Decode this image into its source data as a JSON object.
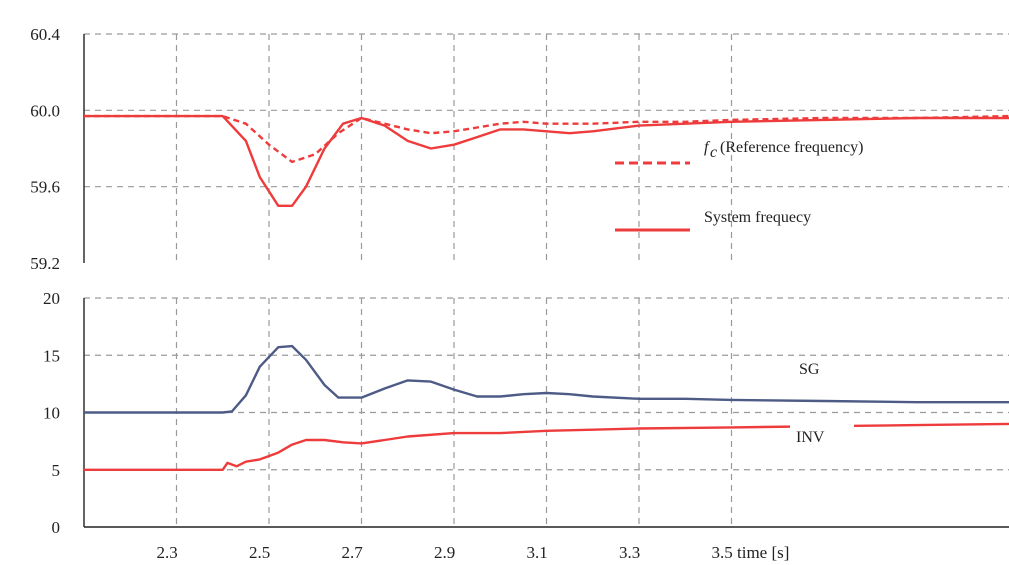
{
  "chart_data": [
    {
      "type": "line",
      "ylim": [
        59.2,
        60.4
      ],
      "yticks": [
        "60.4",
        "60.0",
        "59.6",
        "59.2"
      ],
      "xlim": [
        2.1,
        4.1
      ],
      "grid": true,
      "legend_position": "right",
      "legend": [
        {
          "symbol": "f",
          "subscript": "c",
          "text": "(Reference frequency)",
          "style": "dashed"
        },
        {
          "text": "System frequecy",
          "style": "solid"
        }
      ],
      "colors": {
        "reference": "#ee3b3b",
        "system": "#ee3b3b"
      },
      "series": [
        {
          "name": "fc (Reference frequency)",
          "style": "dashed",
          "x": [
            2.1,
            2.4,
            2.45,
            2.5,
            2.55,
            2.6,
            2.65,
            2.7,
            2.75,
            2.8,
            2.85,
            2.9,
            2.95,
            3.0,
            3.05,
            3.1,
            3.2,
            3.3,
            3.4,
            3.5,
            3.7,
            3.9,
            4.1
          ],
          "y": [
            59.97,
            59.97,
            59.93,
            59.82,
            59.73,
            59.77,
            59.88,
            59.96,
            59.93,
            59.9,
            59.88,
            59.89,
            59.91,
            59.93,
            59.94,
            59.93,
            59.93,
            59.94,
            59.94,
            59.95,
            59.96,
            59.96,
            59.97
          ]
        },
        {
          "name": "System frequecy",
          "style": "solid",
          "x": [
            2.1,
            2.4,
            2.45,
            2.48,
            2.52,
            2.55,
            2.58,
            2.62,
            2.66,
            2.7,
            2.75,
            2.8,
            2.85,
            2.9,
            2.95,
            3.0,
            3.05,
            3.1,
            3.15,
            3.2,
            3.3,
            3.4,
            3.5,
            3.7,
            3.9,
            4.1
          ],
          "y": [
            59.97,
            59.97,
            59.84,
            59.65,
            59.5,
            59.5,
            59.6,
            59.8,
            59.93,
            59.96,
            59.92,
            59.84,
            59.8,
            59.82,
            59.86,
            59.9,
            59.9,
            59.89,
            59.88,
            59.89,
            59.92,
            59.93,
            59.94,
            59.95,
            59.96,
            59.96
          ]
        }
      ]
    },
    {
      "type": "line",
      "ylim": [
        0,
        20
      ],
      "yticks": [
        "20",
        "15",
        "10",
        "5",
        "0"
      ],
      "xlim": [
        2.1,
        4.1
      ],
      "grid": true,
      "xticks": [
        {
          "value": 2.3,
          "label": "2.3"
        },
        {
          "value": 2.5,
          "label": "2.5"
        },
        {
          "value": 2.7,
          "label": "2.7"
        },
        {
          "value": 2.9,
          "label": "2.9"
        },
        {
          "value": 3.1,
          "label": "3.1"
        },
        {
          "value": 3.3,
          "label": "3.3"
        },
        {
          "value": 3.5,
          "label": "3.5 time [s]"
        }
      ],
      "colors": {
        "SG": "#4d5b86",
        "INV": "#ee3b3b"
      },
      "series": [
        {
          "name": "SG",
          "x": [
            2.1,
            2.4,
            2.42,
            2.45,
            2.48,
            2.52,
            2.55,
            2.58,
            2.62,
            2.65,
            2.7,
            2.75,
            2.8,
            2.85,
            2.9,
            2.95,
            3.0,
            3.05,
            3.1,
            3.15,
            3.2,
            3.3,
            3.4,
            3.5,
            3.7,
            3.9,
            4.1
          ],
          "y": [
            10,
            10,
            10.1,
            11.5,
            14.0,
            15.7,
            15.8,
            14.6,
            12.4,
            11.3,
            11.3,
            12.1,
            12.8,
            12.7,
            12.0,
            11.4,
            11.4,
            11.6,
            11.7,
            11.6,
            11.4,
            11.2,
            11.2,
            11.1,
            11.0,
            10.9,
            10.9
          ]
        },
        {
          "name": "INV",
          "x": [
            2.1,
            2.4,
            2.41,
            2.43,
            2.45,
            2.48,
            2.52,
            2.55,
            2.58,
            2.62,
            2.66,
            2.7,
            2.75,
            2.8,
            2.9,
            3.0,
            3.1,
            3.2,
            3.3,
            3.5,
            3.7,
            3.9,
            4.1
          ],
          "y": [
            5.0,
            5.0,
            5.6,
            5.3,
            5.7,
            5.9,
            6.5,
            7.2,
            7.6,
            7.6,
            7.4,
            7.3,
            7.6,
            7.9,
            8.2,
            8.2,
            8.4,
            8.5,
            8.6,
            8.7,
            8.8,
            8.9,
            9.0
          ]
        }
      ]
    }
  ]
}
